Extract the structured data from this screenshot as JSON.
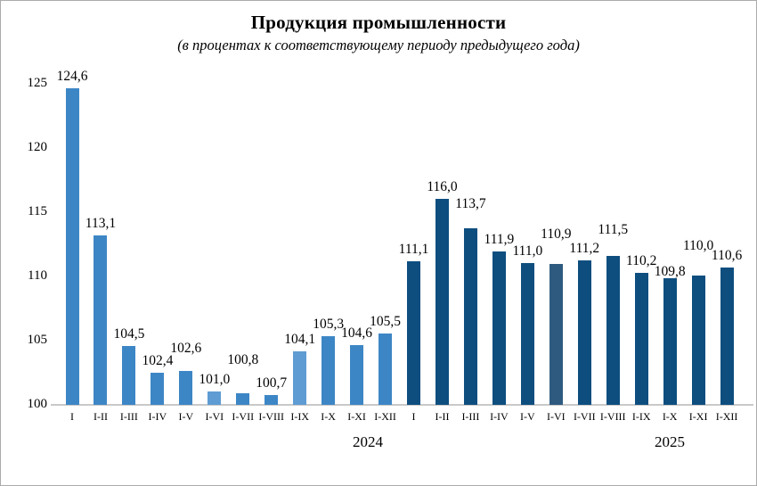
{
  "chart_data": {
    "type": "bar",
    "title": "Продукция промышленности",
    "subtitle": "(в процентах к соответствующему периоду предыдущего года)",
    "xlabel": "",
    "ylabel": "",
    "ylim": [
      100,
      125
    ],
    "yticks": [
      100,
      105,
      110,
      115,
      120,
      125
    ],
    "grid": false,
    "legend": "none",
    "decimal_separator": ",",
    "groups": [
      {
        "year": "2024",
        "categories": [
          "I",
          "I-II",
          "I-III",
          "I-IV",
          "I-V",
          "I-VI",
          "I-VII",
          "I-VIII",
          "I-IX",
          "I-X",
          "I-XI",
          "I-XII"
        ],
        "values": [
          124.6,
          113.1,
          104.5,
          102.4,
          102.6,
          101.0,
          100.8,
          100.7,
          104.1,
          105.3,
          104.6,
          105.5
        ],
        "value_labels": [
          "124,6",
          "113,1",
          "104,5",
          "102,4",
          "102,6",
          "101,0",
          "100,8",
          "100,7",
          "104,1",
          "105,3",
          "104,6",
          "105,5"
        ],
        "bar_color": "#3d86c6",
        "highlight_indices": [
          5,
          8
        ],
        "highlight_color": "#5e9cd3"
      },
      {
        "year": "2025",
        "categories": [
          "I",
          "I-II",
          "I-III",
          "I-IV",
          "I-V",
          "I-VI",
          "I-VII",
          "I-VIII",
          "I-IX",
          "I-X",
          "I-XI",
          "I-XII"
        ],
        "values": [
          111.1,
          116.0,
          113.7,
          111.9,
          111.0,
          110.9,
          111.2,
          111.5,
          110.2,
          109.8,
          110.0,
          110.6
        ],
        "value_labels": [
          "111,1",
          "116,0",
          "113,7",
          "111,9",
          "111,0",
          "110,9",
          "111,2",
          "111,5",
          "110,2",
          "109,8",
          "110,0",
          "110,6"
        ],
        "bar_color": "#0d4e7f",
        "highlight_indices": [
          5
        ],
        "highlight_color": "#2e5a80"
      }
    ],
    "colors": {
      "axis_line": "#c9c9c9",
      "text": "#000000",
      "background": "#ffffff",
      "border": "#ababab"
    }
  }
}
